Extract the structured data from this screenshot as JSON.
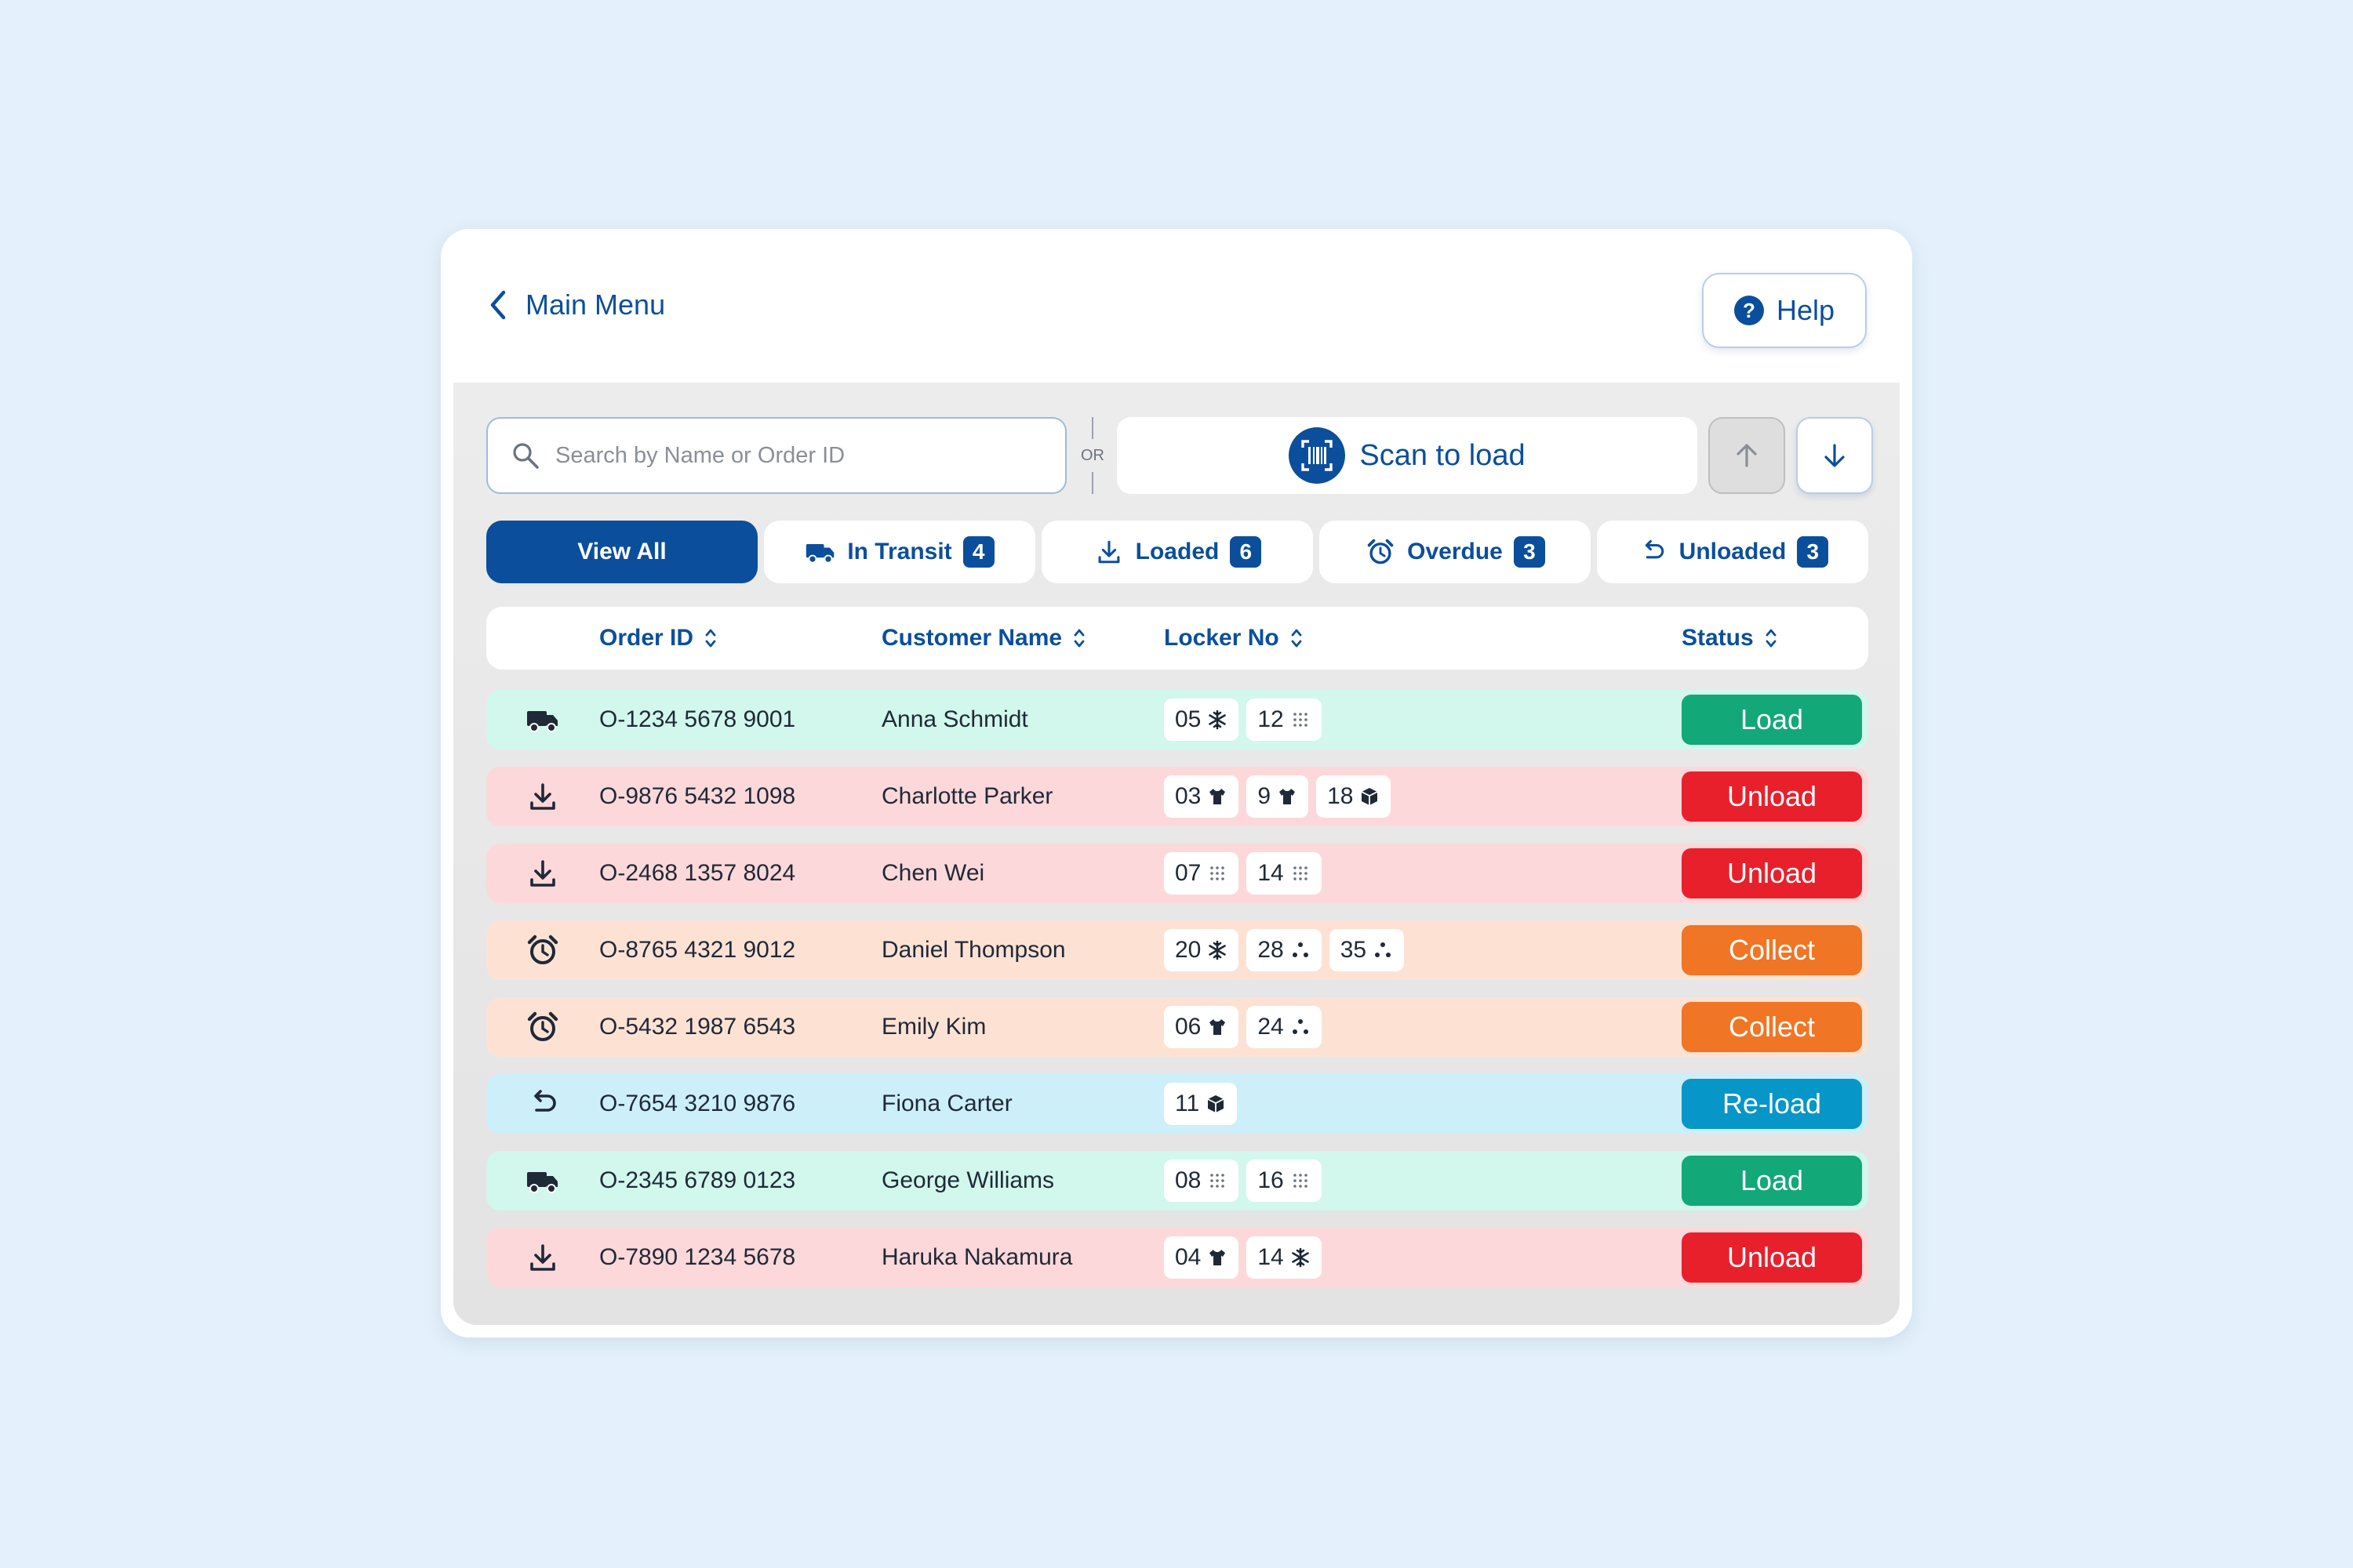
{
  "header": {
    "back_label": "Main Menu",
    "help_label": "Help",
    "help_glyph": "?"
  },
  "toolbar": {
    "search_placeholder": "Search by Name or Order ID",
    "or_label": "OR",
    "scan_label": "Scan to load"
  },
  "tabs": [
    {
      "label": "View All",
      "icon": "",
      "count": null,
      "active": true
    },
    {
      "label": "In Transit",
      "icon": "truck-icon",
      "count": "4",
      "active": false
    },
    {
      "label": "Loaded",
      "icon": "download-icon",
      "count": "6",
      "active": false
    },
    {
      "label": "Overdue",
      "icon": "alarm-clock-icon",
      "count": "3",
      "active": false
    },
    {
      "label": "Unloaded",
      "icon": "undo-icon",
      "count": "3",
      "active": false
    }
  ],
  "table": {
    "columns": [
      "Order ID",
      "Customer Name",
      "Locker No",
      "Status"
    ],
    "rows": [
      {
        "icon": "truck-icon",
        "order_id": "O-1234 5678 9001",
        "customer": "Anna Schmidt",
        "lockers": [
          {
            "no": "05",
            "type": "snowflake-icon"
          },
          {
            "no": "12",
            "type": "dots-grid-icon"
          }
        ],
        "action": "Load",
        "kind": "load"
      },
      {
        "icon": "download-icon",
        "order_id": "O-9876 5432 1098",
        "customer": "Charlotte Parker",
        "lockers": [
          {
            "no": "03",
            "type": "shirt-icon"
          },
          {
            "no": "9",
            "type": "shirt-icon"
          },
          {
            "no": "18",
            "type": "box-icon"
          }
        ],
        "action": "Unload",
        "kind": "unload"
      },
      {
        "icon": "download-icon",
        "order_id": "O-2468 1357 8024",
        "customer": "Chen Wei",
        "lockers": [
          {
            "no": "07",
            "type": "dots-grid-icon"
          },
          {
            "no": "14",
            "type": "dots-grid-icon"
          }
        ],
        "action": "Unload",
        "kind": "unload"
      },
      {
        "icon": "alarm-clock-icon",
        "order_id": "O-8765 4321 9012",
        "customer": "Daniel Thompson",
        "lockers": [
          {
            "no": "20",
            "type": "snowflake-icon"
          },
          {
            "no": "28",
            "type": "three-dots-icon"
          },
          {
            "no": "35",
            "type": "three-dots-icon"
          }
        ],
        "action": "Collect",
        "kind": "collect"
      },
      {
        "icon": "alarm-clock-icon",
        "order_id": "O-5432 1987 6543",
        "customer": "Emily Kim",
        "lockers": [
          {
            "no": "06",
            "type": "shirt-icon"
          },
          {
            "no": "24",
            "type": "three-dots-icon"
          }
        ],
        "action": "Collect",
        "kind": "collect"
      },
      {
        "icon": "undo-icon",
        "order_id": "O-7654 3210 9876",
        "customer": "Fiona Carter",
        "lockers": [
          {
            "no": "11",
            "type": "box-icon"
          }
        ],
        "action": "Re-load",
        "kind": "reload"
      },
      {
        "icon": "truck-icon",
        "order_id": "O-2345 6789 0123",
        "customer": "George Williams",
        "lockers": [
          {
            "no": "08",
            "type": "dots-grid-icon"
          },
          {
            "no": "16",
            "type": "dots-grid-icon"
          }
        ],
        "action": "Load",
        "kind": "load"
      },
      {
        "icon": "download-icon",
        "order_id": "O-7890 1234 5678",
        "customer": "Haruka Nakamura",
        "lockers": [
          {
            "no": "04",
            "type": "shirt-icon"
          },
          {
            "no": "14",
            "type": "snowflake-icon"
          }
        ],
        "action": "Unload",
        "kind": "unload"
      }
    ]
  },
  "colors": {
    "primary": "#0b4f9c",
    "load_row": "#d2f7ec",
    "load_btn": "#12a877",
    "unload_row": "#fdd8da",
    "unload_btn": "#e8202c",
    "collect_row": "#fde2d4",
    "collect_btn": "#f07524",
    "reload_row": "#cdeffa",
    "reload_btn": "#0796c8"
  }
}
